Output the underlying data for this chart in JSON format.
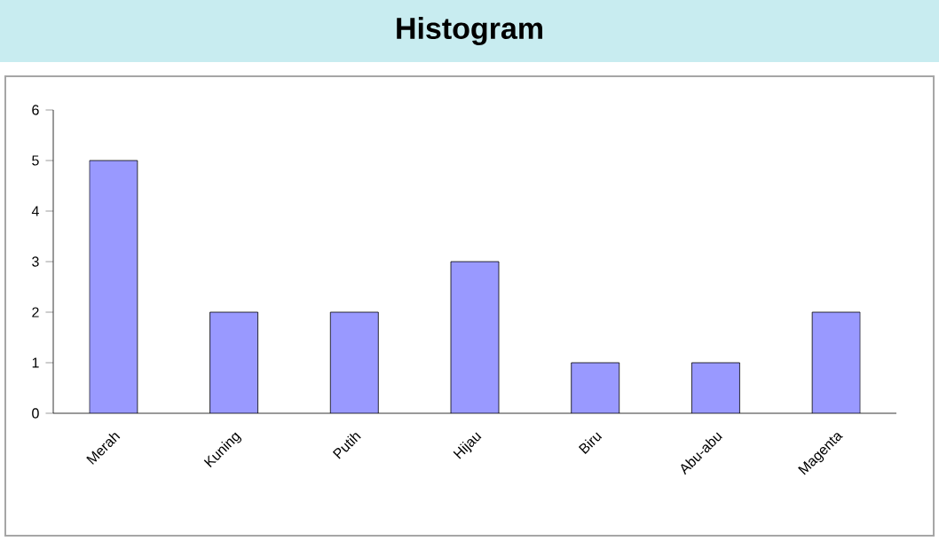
{
  "chart_data": {
    "type": "bar",
    "title": "Histogram",
    "categories": [
      "Merah",
      "Kuning",
      "Putih",
      "Hijau",
      "Biru",
      "Abu-abu",
      "Magenta"
    ],
    "values": [
      5,
      2,
      2,
      3,
      1,
      1,
      2
    ],
    "color": "#9999ff",
    "ylim": [
      0,
      6
    ],
    "yticks": [
      0,
      1,
      2,
      3,
      4,
      5,
      6
    ],
    "grid": false
  }
}
